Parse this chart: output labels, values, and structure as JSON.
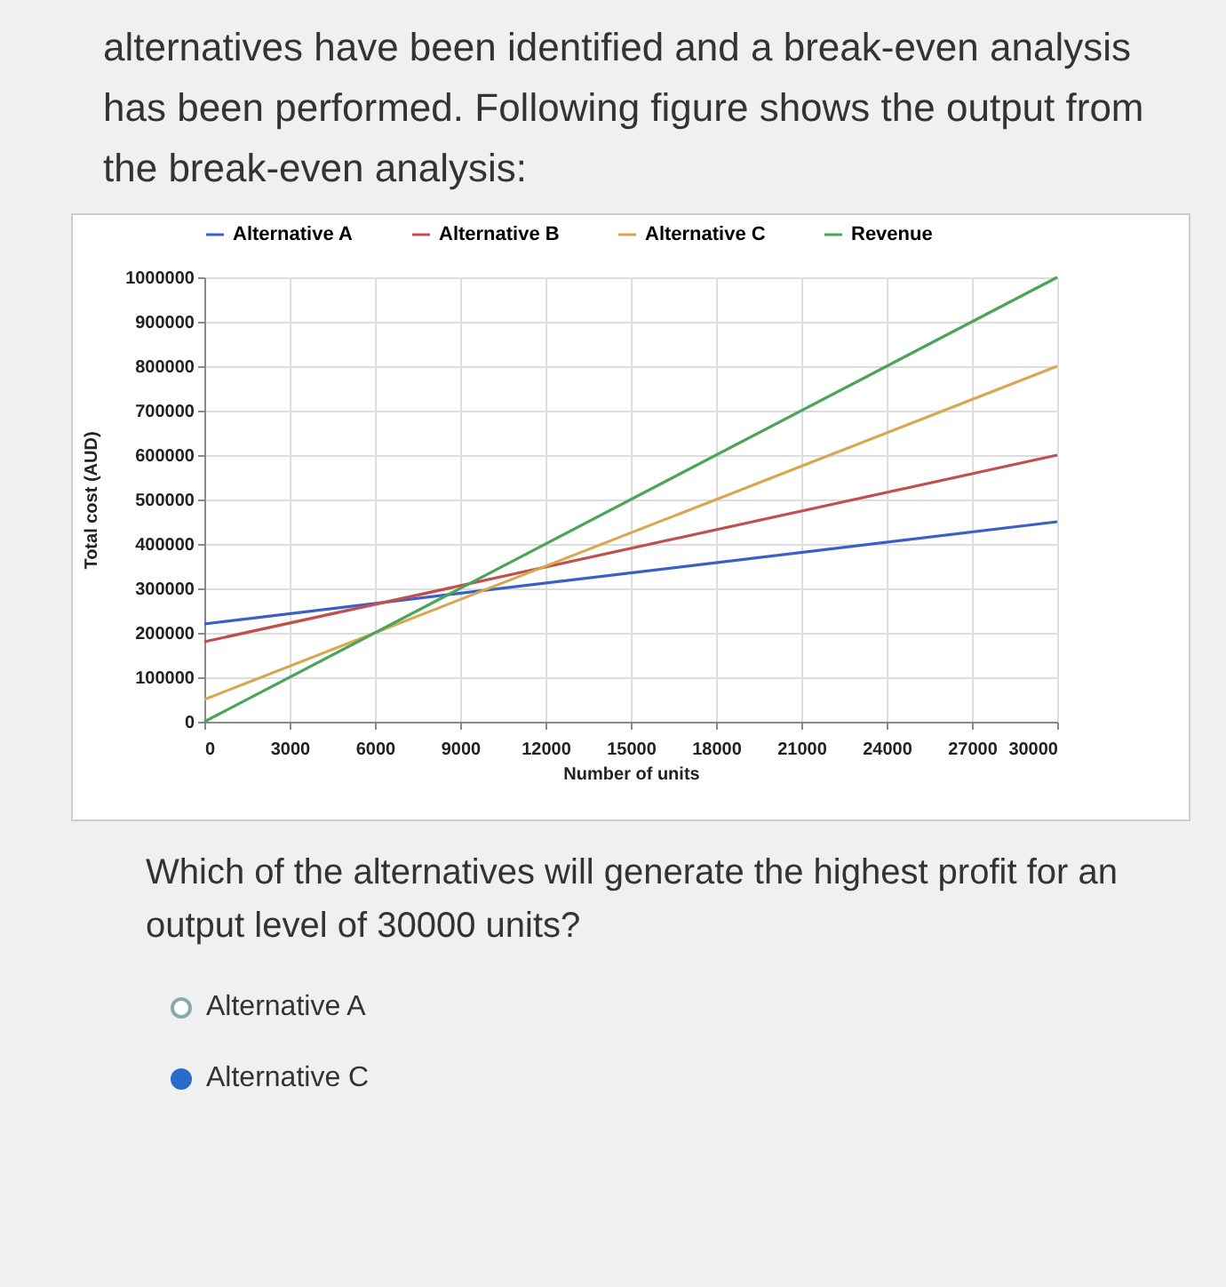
{
  "chart_data": {
    "type": "line",
    "xlabel": "Number of units",
    "ylabel": "Total cost (AUD)",
    "x": [
      0,
      30000
    ],
    "series": [
      {
        "name": "Alternative A",
        "color": "#3a5fc8",
        "values": [
          220000,
          450000
        ]
      },
      {
        "name": "Alternative B",
        "color": "#c0504d",
        "values": [
          180000,
          600000
        ]
      },
      {
        "name": "Alternative C",
        "color": "#d9a84e",
        "values": [
          50000,
          800000
        ]
      },
      {
        "name": "Revenue",
        "color": "#4aa55a",
        "values": [
          0,
          1000000
        ]
      }
    ],
    "xlim": [
      0,
      30000
    ],
    "xticks": [
      0,
      3000,
      6000,
      9000,
      12000,
      15000,
      18000,
      21000,
      24000,
      27000,
      30000
    ],
    "ylim": [
      0,
      1000000
    ],
    "yticks": [
      0,
      100000,
      200000,
      300000,
      400000,
      500000,
      600000,
      700000,
      800000,
      900000,
      1000000
    ],
    "grid": true,
    "legend": "top",
    "marker": "none",
    "line_style": "solid",
    "annotations": [
      "alternatives have been identified and a break-even analysis has been performed. Following figure shows the output from the break-even analysis:",
      "Which of the alternatives will generate the highest profit for an output level of 30000 units?",
      "Alternative A",
      "Alternative C"
    ]
  }
}
